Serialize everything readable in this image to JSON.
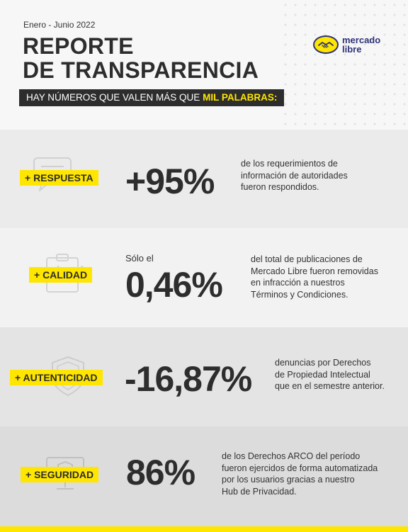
{
  "header": {
    "period": "Enero - Junio 2022",
    "title_line1": "REPORTE",
    "title_line2": "DE TRANSPARENCIA",
    "banner_prefix": "HAY NÚMEROS QUE VALEN MÁS QUE",
    "banner_highlight": "MIL PALABRAS:",
    "logo_line1": "mercado",
    "logo_line2": "libre"
  },
  "colors": {
    "accent": "#ffe600",
    "dark": "#2d2d2d",
    "brand_blue": "#2d3277"
  },
  "sections": [
    {
      "tag": "+ RESPUESTA",
      "icon": "speech-bubble-icon",
      "prefix": "",
      "value": "+95%",
      "desc": [
        "de los requerimientos de",
        "información de autoridades",
        "fueron respondidos."
      ]
    },
    {
      "tag": "+ CALIDAD",
      "icon": "clipboard-checklist-icon",
      "prefix": "Sólo el",
      "value": "0,46%",
      "desc": [
        "del total de publicaciones de",
        "Mercado Libre fueron removidas",
        "en infracción a nuestros",
        "Términos y Condiciones."
      ]
    },
    {
      "tag": "+ AUTENTICIDAD",
      "icon": "shield-check-icon",
      "prefix": "",
      "value": "-16,87%",
      "desc": [
        "denuncias por Derechos",
        "de Propiedad Intelectual",
        "que en el semestre anterior."
      ]
    },
    {
      "tag": "+ SEGURIDAD",
      "icon": "monitor-shield-icon",
      "prefix": "",
      "value": "86%",
      "desc": [
        "de los Derechos ARCO del período",
        "fueron ejercidos de forma automatizada",
        "por los usuarios gracias a nuestro",
        "Hub de Privacidad."
      ]
    }
  ]
}
